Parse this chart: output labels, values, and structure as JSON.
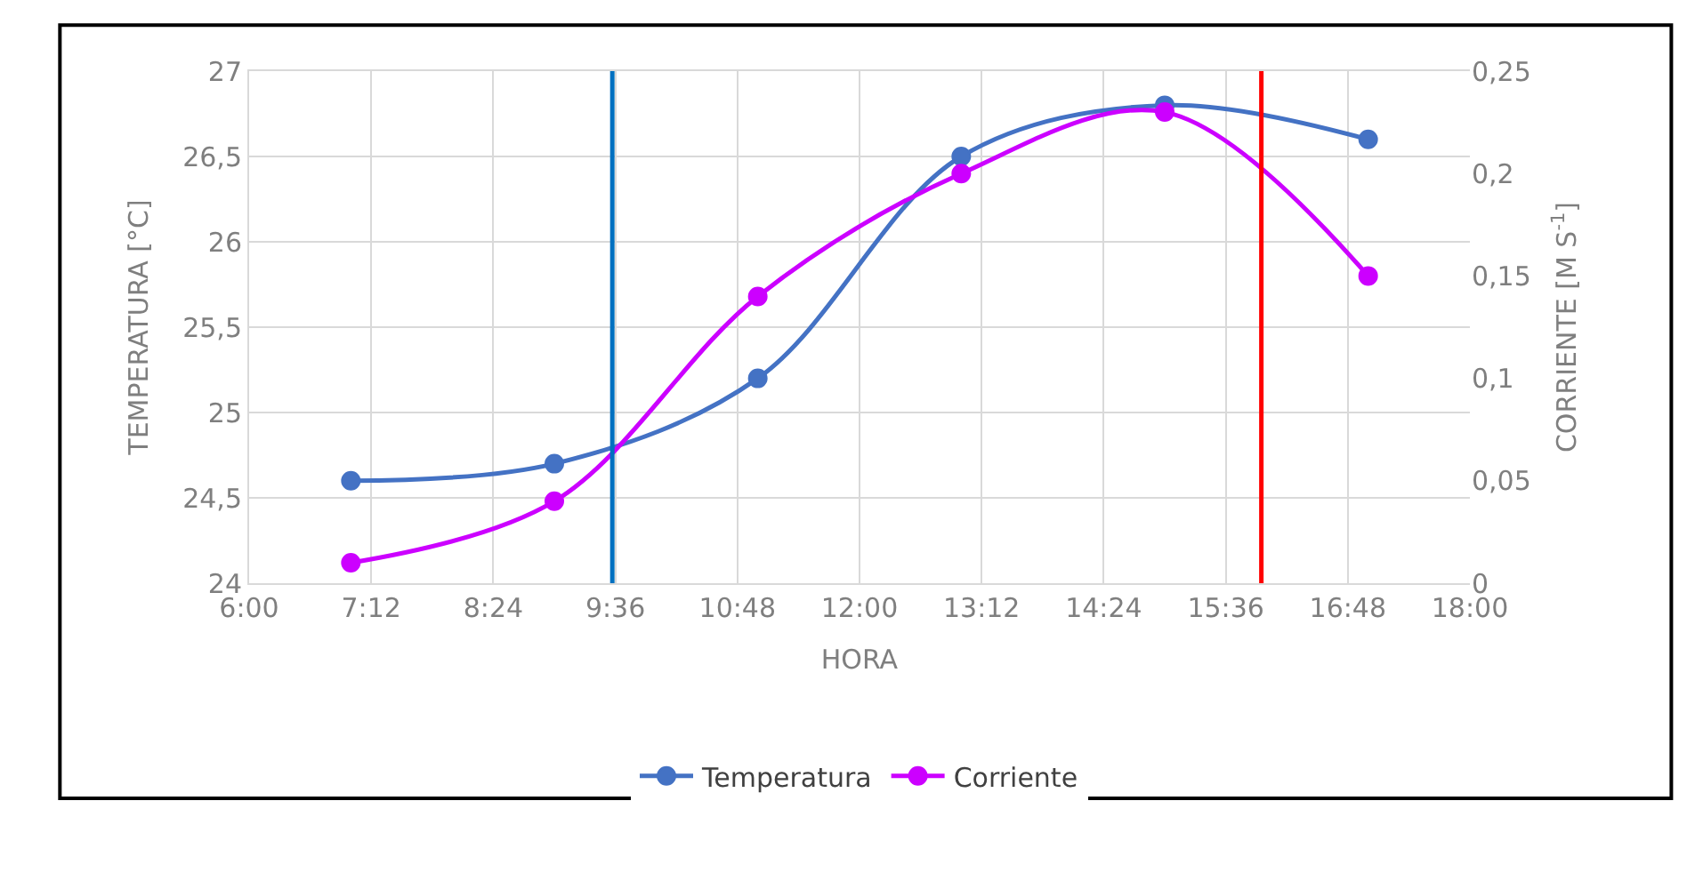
{
  "chart_data": {
    "type": "line",
    "xlabel": "HORA",
    "ylabel": "TEMPERATURA [°C]",
    "y2label": "CORRIENTE [M S$^{-1}$]",
    "x": [
      7,
      9,
      11,
      13,
      15,
      17
    ],
    "series": [
      {
        "name": "Temperatura",
        "color": "#4472c4",
        "values": [
          24.6,
          24.7,
          25.2,
          26.5,
          26.8,
          26.6
        ]
      },
      {
        "name": "Corriente",
        "color": "#cc00ff",
        "axis": "y2",
        "values": [
          0.01,
          0.04,
          0.14,
          0.2,
          0.23,
          0.15
        ]
      }
    ],
    "xlim": [
      6,
      18
    ],
    "xticks": [
      {
        "value": 6,
        "label": "6:00"
      },
      {
        "value": 7.2,
        "label": "7:12"
      },
      {
        "value": 8.4,
        "label": "8:24"
      },
      {
        "value": 9.6,
        "label": "9:36"
      },
      {
        "value": 10.8,
        "label": "10:48"
      },
      {
        "value": 12,
        "label": "12:00"
      },
      {
        "value": 13.2,
        "label": "13:12"
      },
      {
        "value": 14.4,
        "label": "14:24"
      },
      {
        "value": 15.6,
        "label": "15:36"
      },
      {
        "value": 16.8,
        "label": "16:48"
      },
      {
        "value": 18,
        "label": "18:00"
      }
    ],
    "ylim": [
      24,
      27
    ],
    "yticks": [
      24,
      {
        "value": 24.5,
        "label": "24,5"
      },
      25,
      {
        "value": 25.5,
        "label": "25,5"
      },
      26,
      {
        "value": 26.5,
        "label": "26,5"
      },
      27
    ],
    "y2lim": [
      0,
      0.25
    ],
    "y2ticks": [
      0,
      {
        "value": 0.05,
        "label": "0,05"
      },
      {
        "value": 0.1,
        "label": "0,1"
      },
      {
        "value": 0.15,
        "label": "0,15"
      },
      {
        "value": 0.2,
        "label": "0,2"
      },
      {
        "value": 0.25,
        "label": "0,25"
      }
    ],
    "ref_lines": [
      {
        "axis": "x",
        "value": 9.57,
        "color": "#0070c0"
      },
      {
        "axis": "x",
        "value": 15.95,
        "color": "#ff0000"
      }
    ],
    "grid": true,
    "legend": "bottom",
    "marker": "circle",
    "line_style": "solid"
  }
}
